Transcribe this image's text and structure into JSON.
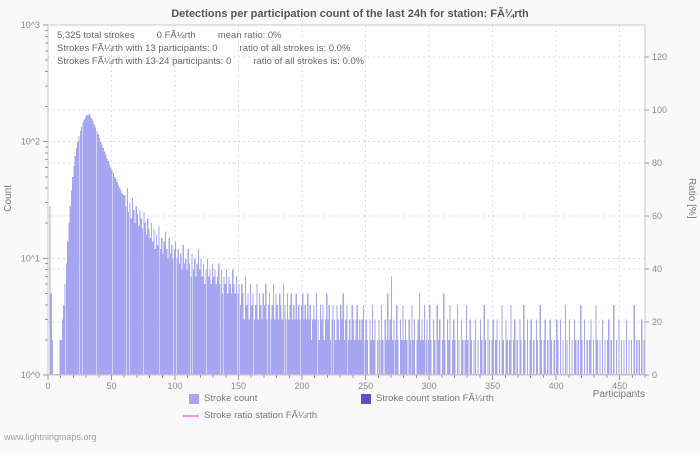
{
  "title": "Detections per participation count of the last 24h for station: FÃ¼rth",
  "info_lines": [
    [
      "5,325 total strokes",
      "0 FÃ¼rth",
      "mean ratio: 0%"
    ],
    [
      "Strokes FÃ¼rth with 13 participants: 0",
      "ratio of all strokes is: 0.0%"
    ],
    [
      "Strokes FÃ¼rth with 13-24 participants: 0",
      "ratio of all strokes is: 0.0%"
    ]
  ],
  "axes": {
    "y_label": "Count",
    "y2_label": "Ratio [%]",
    "x_label": "Participants"
  },
  "legend": [
    {
      "label": "Stroke count"
    },
    {
      "label": "Stroke count station FÃ¼rth"
    },
    {
      "label": "Stroke ratio station FÃ¼rth"
    }
  ],
  "watermark": "www.lightningmaps.org",
  "colors": {
    "bar": "#a6a6f0",
    "station": "#5353cb",
    "ratio": "#ee99ee",
    "grid": "#dedede",
    "border": "#c8c8c8",
    "tick": "#999999",
    "text": "#888888"
  },
  "chart_data": {
    "type": "bar",
    "title": "Detections per participation count of the last 24h for station: FÃ¼rth",
    "xlabel": "Participants",
    "ylabel": "Count",
    "y2label": "Ratio [%]",
    "y_scale": "log",
    "xlim": [
      0,
      470
    ],
    "ylim": [
      1,
      1000
    ],
    "y2lim": [
      0,
      132
    ],
    "x_ticks": [
      0,
      50,
      100,
      150,
      200,
      250,
      300,
      350,
      400,
      450
    ],
    "y_ticks": [
      {
        "label": "10^0",
        "value": 1
      },
      {
        "label": "10^1",
        "value": 10
      },
      {
        "label": "10^2",
        "value": 100
      },
      {
        "label": "10^3",
        "value": 1000
      }
    ],
    "y2_ticks": [
      0,
      20,
      40,
      60,
      80,
      100,
      120
    ],
    "grid": true,
    "legend_position": "bottom",
    "series": [
      {
        "name": "Stroke count",
        "color": "#a6a6f0",
        "values": [
          0,
          28,
          5,
          2,
          0,
          0,
          0,
          0,
          0,
          2,
          2,
          3,
          4,
          6,
          9,
          14,
          20,
          28,
          38,
          50,
          62,
          75,
          88,
          100,
          112,
          124,
          135,
          146,
          155,
          163,
          170,
          168,
          172,
          165,
          158,
          150,
          140,
          132,
          124,
          116,
          108,
          100,
          95,
          88,
          82,
          78,
          72,
          68,
          64,
          60,
          57,
          54,
          50,
          48,
          45,
          42,
          40,
          38,
          36,
          35,
          35,
          28,
          40,
          25,
          30,
          22,
          33,
          26,
          20,
          28,
          24,
          19,
          26,
          22,
          18,
          25,
          20,
          16,
          22,
          18,
          15,
          20,
          14,
          18,
          12,
          16,
          13,
          19,
          12,
          15,
          11,
          14,
          17,
          12,
          10,
          15,
          11,
          13,
          10,
          12,
          14,
          10,
          12,
          9,
          11,
          8,
          13,
          9,
          10,
          8,
          12,
          9,
          7,
          11,
          8,
          10,
          7,
          9,
          12,
          8,
          10,
          7,
          9,
          6,
          8,
          10,
          7,
          8,
          6,
          9,
          7,
          8,
          6,
          7,
          9,
          6,
          8,
          5,
          7,
          6,
          8,
          5,
          7,
          6,
          5,
          8,
          6,
          5,
          7,
          5,
          6,
          4,
          6,
          5,
          3,
          7,
          4,
          5,
          3,
          6,
          4,
          5,
          3,
          4,
          6,
          3,
          5,
          4,
          3,
          5,
          4,
          6,
          3,
          4,
          5,
          3,
          4,
          6,
          3,
          5,
          4,
          3,
          5,
          4,
          3,
          6,
          4,
          3,
          5,
          3,
          4,
          5,
          3,
          4,
          3,
          5,
          3,
          4,
          3,
          4,
          5,
          3,
          4,
          3,
          5,
          3,
          4,
          2,
          3,
          4,
          3,
          5,
          3,
          2,
          4,
          3,
          4,
          2,
          3,
          5,
          3,
          4,
          2,
          3,
          4,
          3,
          2,
          4,
          3,
          2,
          4,
          3,
          5,
          2,
          3,
          4,
          2,
          3,
          2,
          4,
          3,
          2,
          3,
          4,
          2,
          3,
          2,
          3,
          4,
          2,
          3,
          2,
          0,
          3,
          2,
          4,
          2,
          3,
          0,
          2,
          3,
          2,
          4,
          2,
          0,
          3,
          2,
          5,
          2,
          3,
          7,
          2,
          3,
          2,
          4,
          2,
          0,
          3,
          2,
          4,
          2,
          3,
          2,
          0,
          3,
          2,
          4,
          2,
          3,
          0,
          2,
          3,
          5,
          2,
          3,
          2,
          4,
          2,
          3,
          2,
          4,
          2,
          0,
          3,
          2,
          0,
          4,
          2,
          3,
          0,
          2,
          5,
          2,
          0,
          3,
          2,
          4,
          0,
          2,
          3,
          2,
          0,
          4,
          2,
          0,
          3,
          2,
          0,
          2,
          4,
          2,
          0,
          3,
          2,
          0,
          2,
          3,
          0,
          2,
          0,
          3,
          2,
          0,
          4,
          2,
          0,
          3,
          2,
          0,
          2,
          3,
          0,
          2,
          3,
          0,
          2,
          0,
          4,
          2,
          0,
          3,
          2,
          0,
          2,
          4,
          0,
          2,
          3,
          0,
          2,
          0,
          3,
          2,
          0,
          4,
          2,
          0,
          3,
          0,
          2,
          3,
          0,
          2,
          0,
          3,
          2,
          0,
          4,
          2,
          0,
          2,
          3,
          0,
          2,
          0,
          3,
          2,
          0,
          2,
          0,
          3,
          2,
          0,
          3,
          0,
          2,
          0,
          4,
          2,
          0,
          3,
          0,
          2,
          0,
          3,
          2,
          0,
          2,
          0,
          4,
          2,
          0,
          3,
          0,
          2,
          0,
          2,
          3,
          0,
          2,
          0,
          4,
          2,
          0,
          2,
          0,
          3,
          0,
          2,
          0,
          2,
          3,
          0,
          2,
          0,
          4,
          0,
          2,
          0,
          3,
          0,
          2,
          0,
          2,
          0,
          3,
          0,
          2,
          0,
          2,
          0,
          4,
          0,
          2,
          0,
          2,
          0,
          3,
          0,
          2,
          1
        ]
      },
      {
        "name": "Stroke count station FÃ¼rth",
        "color": "#5353cb",
        "constant": 0
      },
      {
        "name": "Stroke ratio station FÃ¼rth",
        "color": "#ee99ee",
        "axis": "y2",
        "constant": 0
      }
    ]
  }
}
